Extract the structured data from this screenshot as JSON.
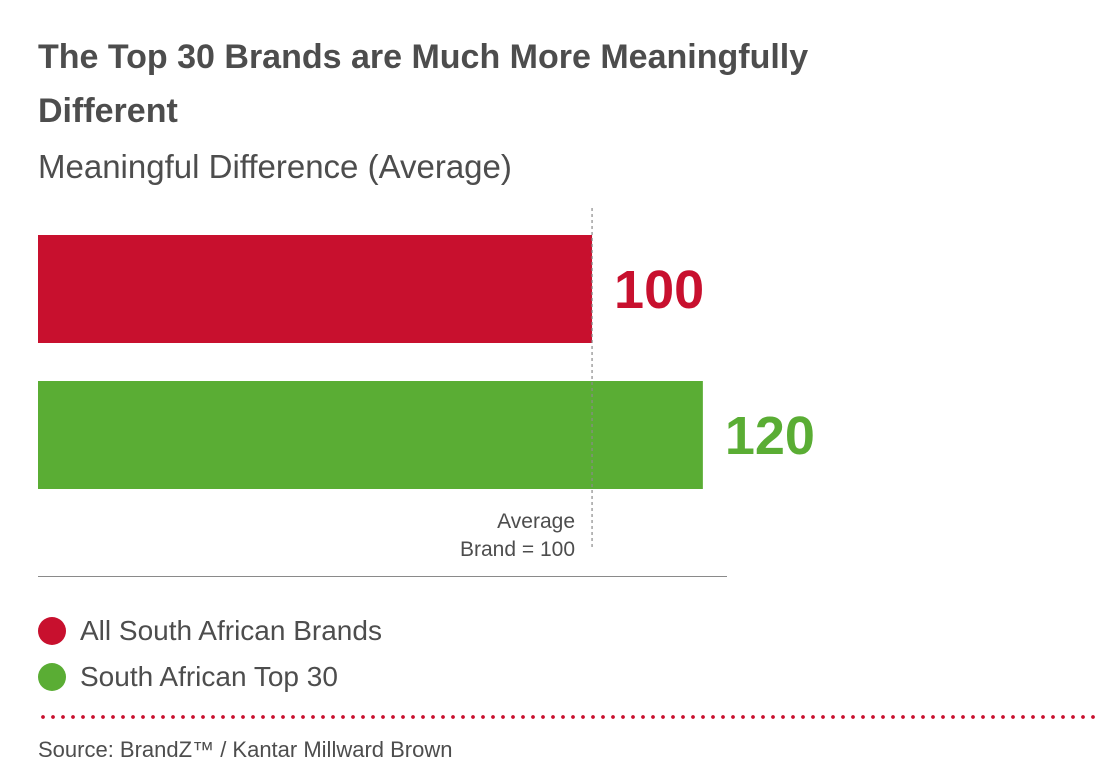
{
  "header": {
    "title": "The Top 30 Brands are Much More Meaningfully Different",
    "subtitle": "Meaningful Difference (Average)"
  },
  "chart_data": {
    "type": "bar",
    "orientation": "horizontal",
    "title": "The Top 30 Brands are Much More Meaningfully Different",
    "subtitle": "Meaningful Difference (Average)",
    "categories": [
      "All South African Brands",
      "South African Top 30"
    ],
    "values": [
      100,
      120
    ],
    "value_labels": [
      "100",
      "120"
    ],
    "colors": [
      "#c8102e",
      "#5aad34"
    ],
    "xlim": [
      0,
      148
    ],
    "reference_line": {
      "value": 100,
      "label_line1": "Average",
      "label_line2": "Brand = 100"
    },
    "grid": false,
    "legend": {
      "placement": "bottom-left",
      "entries": [
        {
          "label": "All South African Brands",
          "color": "#c8102e"
        },
        {
          "label": "South African Top 30",
          "color": "#5aad34"
        }
      ]
    }
  },
  "footer": {
    "source": "Source: BrandZ™ / Kantar Millward Brown",
    "divider_color": "#c8102e"
  }
}
